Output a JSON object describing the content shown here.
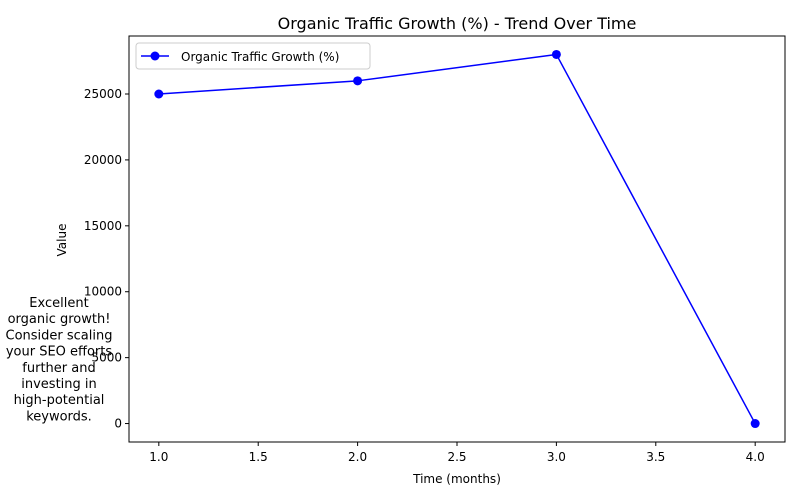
{
  "chart_data": {
    "type": "line",
    "title": "Organic Traffic Growth (%) - Trend Over Time",
    "xlabel": "Time (months)",
    "ylabel": "Value",
    "x": [
      1.0,
      2.0,
      3.0,
      4.0
    ],
    "series": [
      {
        "name": "Organic Traffic Growth (%)",
        "values": [
          25000,
          26000,
          28000,
          0
        ],
        "color": "#0000ff",
        "marker": "circle"
      }
    ],
    "xlim": [
      0.85,
      4.15
    ],
    "ylim": [
      -1400,
      29400
    ],
    "x_ticks": [
      "1.0",
      "1.5",
      "2.0",
      "2.5",
      "3.0",
      "3.5",
      "4.0"
    ],
    "x_tick_values": [
      1.0,
      1.5,
      2.0,
      2.5,
      3.0,
      3.5,
      4.0
    ],
    "y_ticks": [
      "0",
      "5000",
      "10000",
      "15000",
      "20000",
      "25000"
    ],
    "y_tick_values": [
      0,
      5000,
      10000,
      15000,
      20000,
      25000
    ],
    "grid": false,
    "legend_position": "top-left",
    "annotation": {
      "lines": [
        "Excellent",
        "organic growth!",
        "Consider scaling",
        "your SEO efforts",
        "further and",
        "investing in",
        "high-potential",
        "keywords."
      ]
    }
  }
}
